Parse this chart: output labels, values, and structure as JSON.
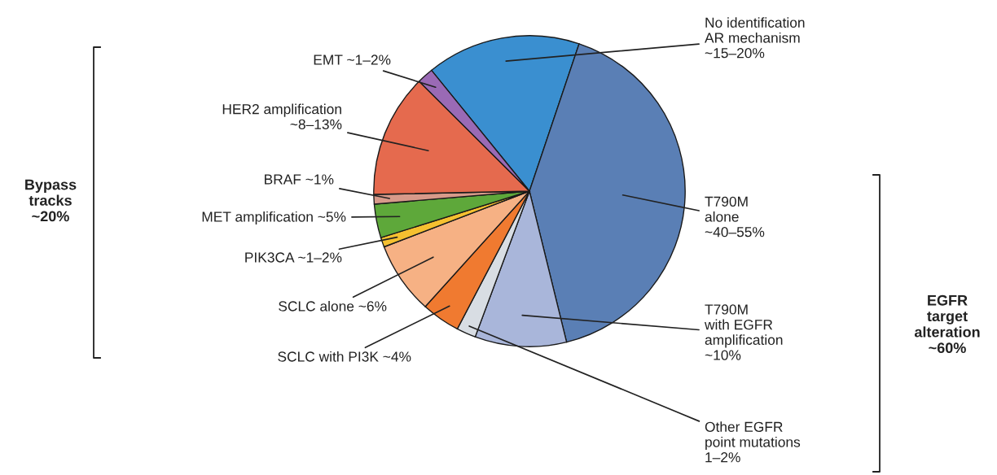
{
  "chart_data": {
    "type": "pie",
    "categories": [
      "No identification\nAR mechanism\n~15–20%",
      "T790M\nalone\n~40–55%",
      "T790M\nwith EGFR\namplification\n~10%",
      "Other EGFR\npoint mutations\n1–2%",
      "SCLC with PI3K ~4%",
      "SCLC alone ~6%",
      "PIK3CA ~1–2%",
      "MET amplification ~5%",
      "BRAF ~1%",
      "HER2 amplification\n~8–13%",
      "EMT ~1–2%"
    ],
    "values": [
      16,
      41,
      9.5,
      2,
      4,
      7.5,
      1,
      3.5,
      1,
      12.8,
      1.7
    ],
    "colors": [
      "#3a8fd0",
      "#5a7fb5",
      "#a9b6da",
      "#d8dde3",
      "#f07a30",
      "#f6b184",
      "#f5c030",
      "#5ea83a",
      "#d79a8a",
      "#e56a4e",
      "#9a6ab5"
    ],
    "annotations": [
      "Bypass\ntracks\n~20%",
      "EGFR\ntarget\nalteration\n~60%"
    ]
  }
}
